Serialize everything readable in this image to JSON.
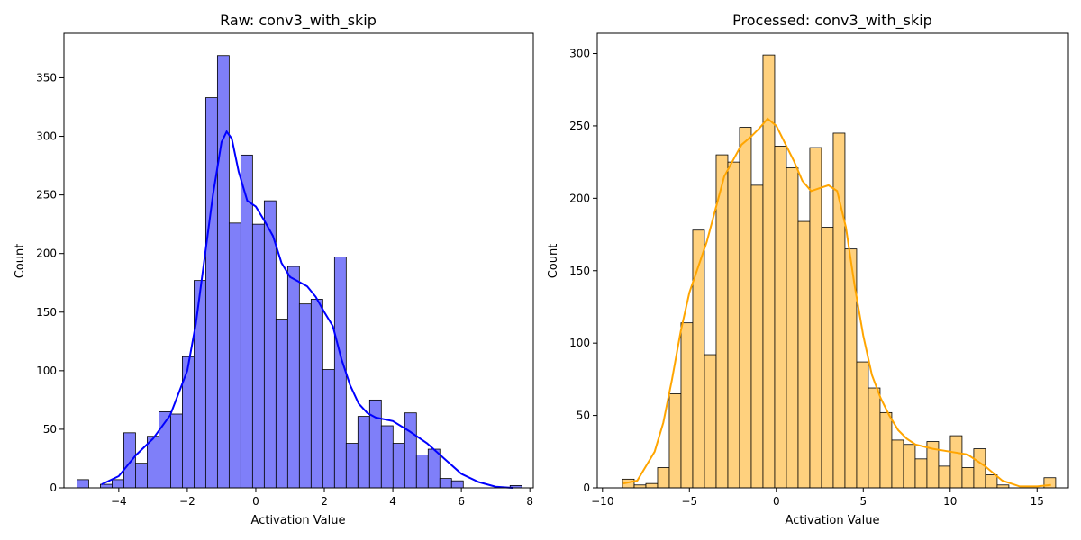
{
  "chart_data": [
    {
      "type": "bar",
      "title": "Raw: conv3_with_skip",
      "xlabel": "Activation Value",
      "ylabel": "Count",
      "xlim": [
        -5.6,
        8.1
      ],
      "ylim": [
        0,
        388
      ],
      "xticks": [
        -4,
        -2,
        0,
        2,
        4,
        6,
        8
      ],
      "yticks": [
        0,
        50,
        100,
        150,
        200,
        250,
        300,
        350
      ],
      "colors": {
        "bar_fill": "#7f7ff9",
        "kde": "#0000ff"
      },
      "bins": {
        "start": -5.22,
        "width": 0.3417,
        "counts": [
          7,
          0,
          3,
          7,
          47,
          21,
          44,
          65,
          63,
          112,
          177,
          333,
          369,
          226,
          284,
          225,
          245,
          144,
          189,
          157,
          161,
          101,
          197,
          38,
          61,
          75,
          53,
          38,
          64,
          28,
          33,
          8,
          6,
          0,
          0,
          0,
          0,
          2
        ]
      },
      "kde": {
        "x": [
          -4.5,
          -4.0,
          -3.5,
          -3.0,
          -2.5,
          -2.0,
          -1.75,
          -1.5,
          -1.25,
          -1.0,
          -0.85,
          -0.7,
          -0.5,
          -0.25,
          0.0,
          0.25,
          0.5,
          0.75,
          1.0,
          1.25,
          1.5,
          1.75,
          2.0,
          2.25,
          2.5,
          2.75,
          3.0,
          3.25,
          3.5,
          4.0,
          4.5,
          5.0,
          5.5,
          6.0,
          6.5,
          7.0,
          7.5
        ],
        "y": [
          3,
          10,
          28,
          42,
          62,
          100,
          140,
          195,
          250,
          295,
          304,
          298,
          270,
          245,
          240,
          228,
          215,
          192,
          180,
          176,
          172,
          163,
          150,
          138,
          110,
          88,
          72,
          64,
          60,
          57,
          48,
          38,
          25,
          12,
          5,
          1,
          0
        ]
      }
    },
    {
      "type": "bar",
      "title": "Processed: conv3_with_skip",
      "xlabel": "Activation Value",
      "ylabel": "Count",
      "xlim": [
        -10.3,
        16.8
      ],
      "ylim": [
        0,
        314
      ],
      "xticks": [
        -10,
        -5,
        0,
        5,
        10,
        15
      ],
      "yticks": [
        0,
        50,
        100,
        150,
        200,
        250,
        300
      ],
      "colors": {
        "bar_fill": "#ffd17e",
        "kde": "#ffa500"
      },
      "bins": {
        "start": -8.85,
        "width": 0.6735,
        "counts": [
          6,
          2,
          3,
          14,
          65,
          114,
          178,
          92,
          230,
          225,
          249,
          209,
          299,
          236,
          221,
          184,
          235,
          180,
          245,
          165,
          87,
          69,
          52,
          33,
          30,
          20,
          32,
          15,
          36,
          14,
          27,
          9,
          2,
          0,
          0,
          0,
          7
        ]
      },
      "kde": {
        "x": [
          -8.8,
          -8.0,
          -7.0,
          -6.5,
          -6.0,
          -5.5,
          -5.0,
          -4.0,
          -3.0,
          -2.0,
          -1.5,
          -1.0,
          -0.5,
          0.0,
          0.5,
          1.0,
          1.5,
          2.0,
          2.5,
          3.0,
          3.5,
          4.0,
          4.5,
          5.0,
          5.5,
          6.0,
          6.5,
          7.0,
          7.5,
          8.0,
          9.0,
          10.0,
          11.0,
          12.0,
          13.0,
          14.0,
          15.0,
          15.8
        ],
        "y": [
          3,
          5,
          25,
          45,
          75,
          108,
          135,
          170,
          215,
          237,
          242,
          248,
          255,
          250,
          238,
          226,
          212,
          205,
          207,
          209,
          205,
          180,
          140,
          105,
          78,
          62,
          50,
          40,
          34,
          30,
          27,
          25,
          23,
          15,
          5,
          1,
          1,
          2
        ]
      }
    }
  ]
}
